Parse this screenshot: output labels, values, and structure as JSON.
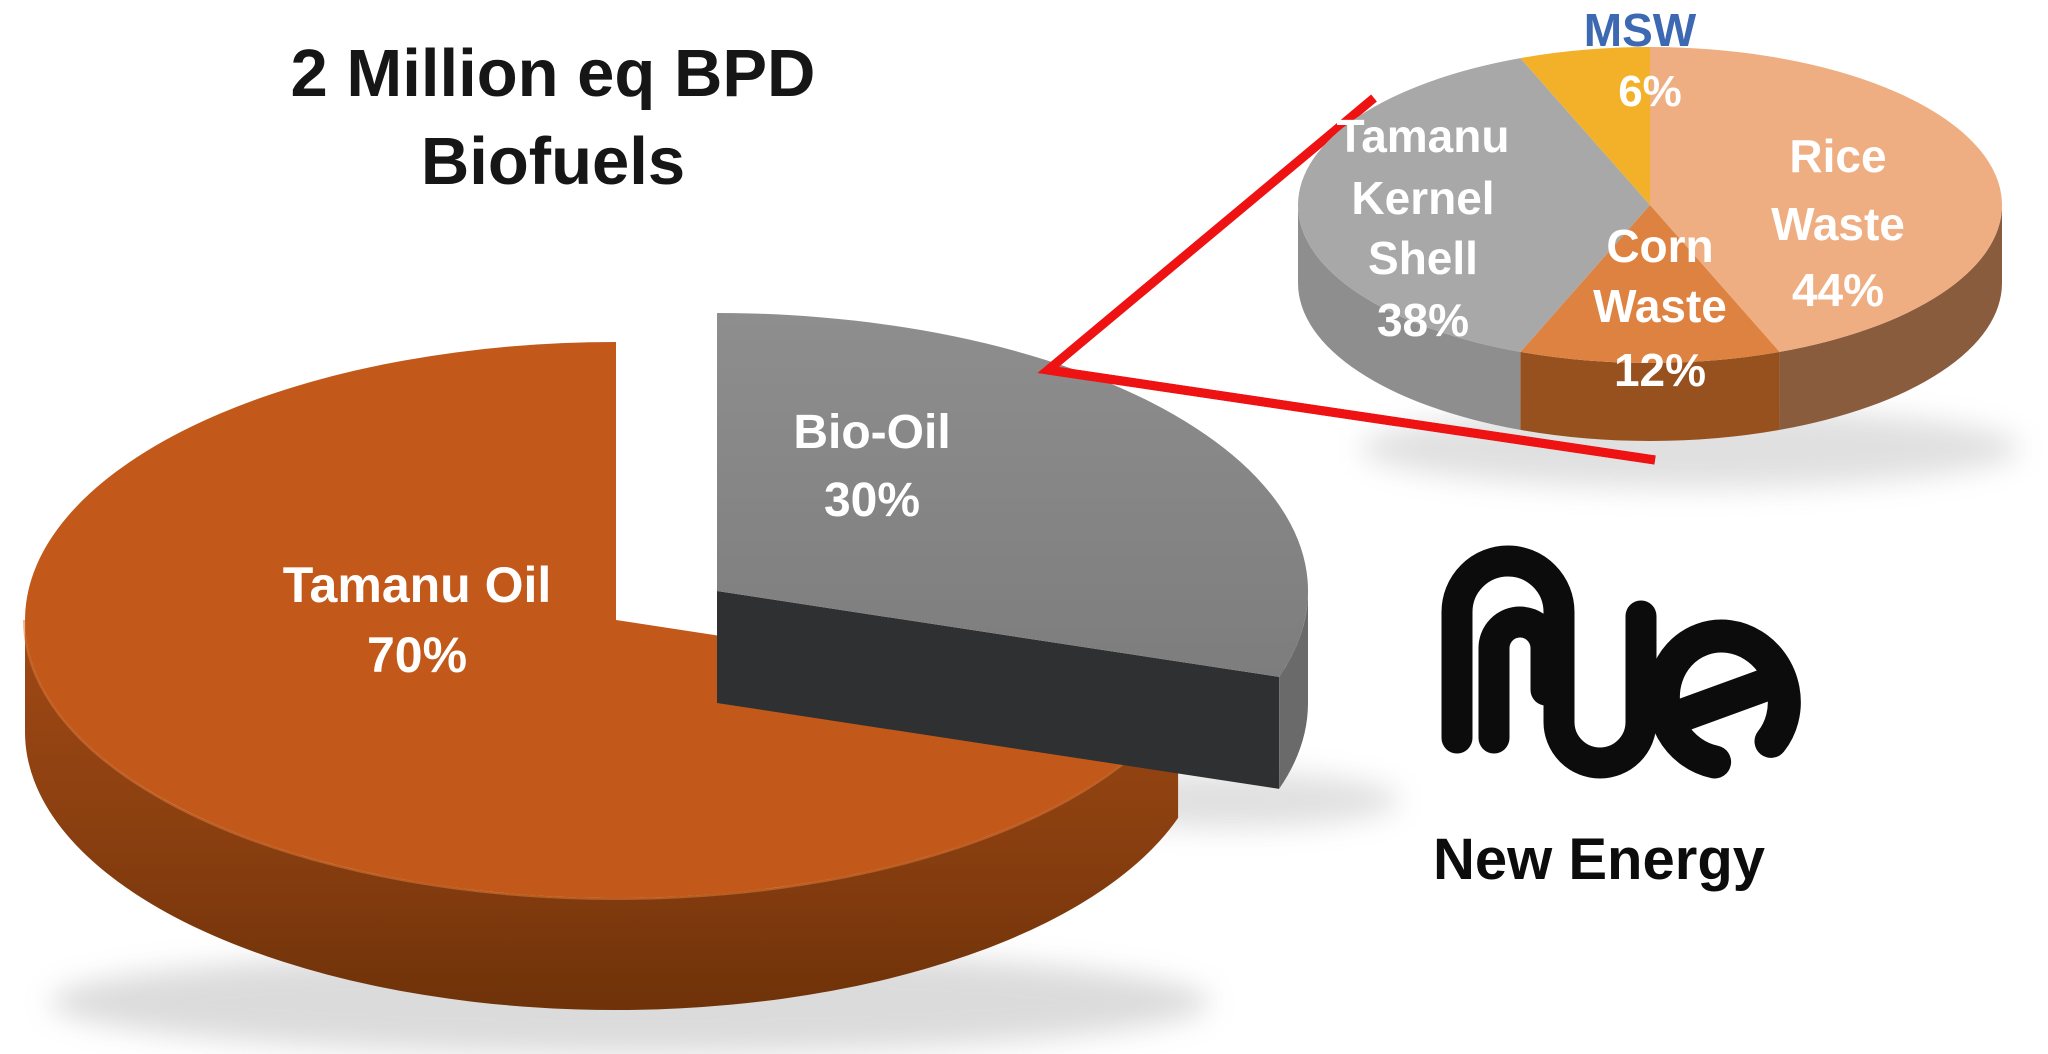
{
  "page": {
    "background": "#FFFFFF"
  },
  "title": {
    "line1": "2 Million eq BPD",
    "line2": "Biofuels",
    "color": "#161616"
  },
  "chart_data": [
    {
      "type": "pie",
      "name": "biofuels-main-pie",
      "title": "2 Million eq BPD Biofuels",
      "style": "3d-exploded",
      "unit": "percent",
      "categories": [
        "Tamanu Oil",
        "Bio-Oil"
      ],
      "values": [
        70,
        30
      ],
      "slices": [
        {
          "label": "Tamanu Oil",
          "pct_label": "70%",
          "value": 70,
          "top_color": "#C2591B",
          "side_color_top": "#A04915",
          "side_color_bottom": "#6F3209",
          "label_color": "#FFFFFF"
        },
        {
          "label": "Bio-Oil",
          "pct_label": "30%",
          "value": 30,
          "exploded": true,
          "top_color": "#858585",
          "cut_face_color": "#2E3032",
          "arc_side_color": "#6A6A6A",
          "label_color": "#FFFFFF"
        }
      ]
    },
    {
      "type": "pie",
      "name": "bio-oil-feedstock-pie",
      "title": "Bio-Oil breakdown",
      "style": "3d",
      "unit": "percent",
      "categories": [
        "Rice Waste",
        "Corn Waste",
        "Tamanu Kernel Shell",
        "MSW"
      ],
      "values": [
        44,
        12,
        38,
        6
      ],
      "slices": [
        {
          "label": "Rice Waste",
          "label_lines": [
            "Rice",
            "Waste"
          ],
          "pct_label": "44%",
          "value": 44,
          "top_color": "#EFAE82",
          "side_color": "#8A5C3E",
          "label_color": "#FFFFFF"
        },
        {
          "label": "Corn Waste",
          "label_lines": [
            "Corn",
            "Waste"
          ],
          "pct_label": "12%",
          "value": 12,
          "top_color": "#DD8240",
          "side_color": "#97511F",
          "label_color": "#FFFFFF"
        },
        {
          "label": "Tamanu Kernel Shell",
          "label_lines": [
            "Tamanu",
            "Kernel",
            "Shell"
          ],
          "pct_label": "38%",
          "value": 38,
          "top_color": "#A8A8A8",
          "side_color": "#8E8E8E",
          "label_color": "#FFFFFF"
        },
        {
          "label": "MSW",
          "label_lines": [],
          "pct_label": "6%",
          "value": 6,
          "top_color": "#F3B129",
          "label_color": "#FFFFFF",
          "external_label": "MSW",
          "external_label_color": "#3D69B3"
        }
      ]
    }
  ],
  "connector": {
    "color": "#EE1212",
    "description": "red V lines linking Bio-Oil slice to its breakdown pie"
  },
  "logo": {
    "monogram": "Ne",
    "caption": "New Energy",
    "color": "#0C0C0C"
  }
}
